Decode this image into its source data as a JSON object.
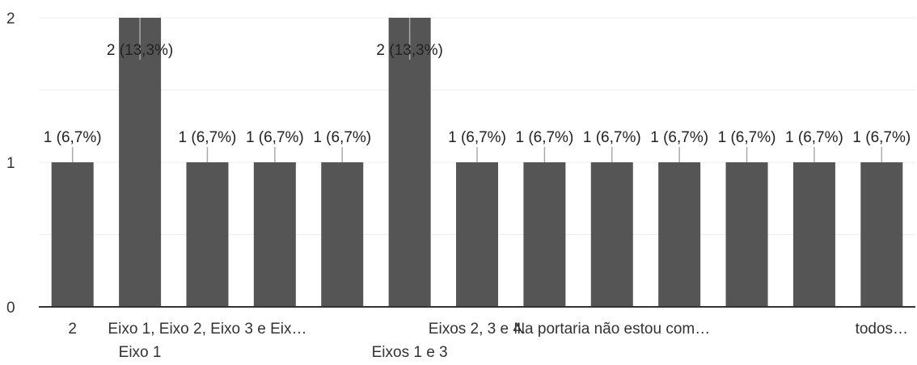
{
  "chart_data": {
    "type": "bar",
    "title": "",
    "xlabel": "",
    "ylabel": "",
    "ylim": [
      0,
      2
    ],
    "yticks": [
      0,
      1,
      2
    ],
    "minor_gridlines": [
      0.5,
      1.5
    ],
    "grid": true,
    "legend": "none",
    "colors": {
      "bar": "#555555",
      "grid": "#eeeeee",
      "axis": "#333333",
      "leader": "#aaaaaa"
    },
    "categories": [
      "2",
      "Eixo 1",
      "Eixo 1, Eixo 2, Eixo 3 e Eix…",
      "",
      "",
      "Eixos 1 e 3",
      "Eixos 2, 3 e 4.",
      "",
      "Na portaria não estou com…",
      "",
      "",
      "",
      "todos…"
    ],
    "values": [
      1,
      2,
      1,
      1,
      1,
      2,
      1,
      1,
      1,
      1,
      1,
      1,
      1
    ],
    "data_labels": [
      "1 (6,7%)",
      "2 (13,3%)",
      "1 (6,7%)",
      "1 (6,7%)",
      "1 (6,7%)",
      "2 (13,3%)",
      "1 (6,7%)",
      "1 (6,7%)",
      "1 (6,7%)",
      "1 (6,7%)",
      "1 (6,7%)",
      "1 (6,7%)",
      "1 (6,7%)"
    ]
  }
}
